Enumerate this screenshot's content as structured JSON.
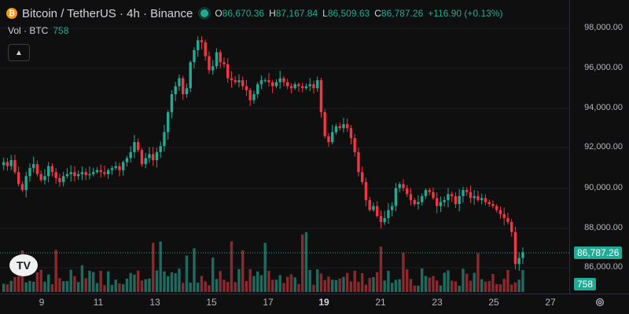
{
  "legend": {
    "symbol": "Bitcoin / TetherUS · 4h · Binance",
    "coin_icon": "bitcoin-icon",
    "ohlc": [
      {
        "k": "O",
        "v": "86,670.36"
      },
      {
        "k": "H",
        "v": "87,167.84"
      },
      {
        "k": "L",
        "v": "86,509.63"
      },
      {
        "k": "C",
        "v": "86,787.26"
      }
    ],
    "change": "+116.90 (+0.13%)"
  },
  "volume": {
    "label": "Vol · BTC",
    "value": "758"
  },
  "price_axis": [
    "98,000.00",
    "96,000.00",
    "94,000.00",
    "92,000.00",
    "90,000.00",
    "88,000.00",
    "86,000.00"
  ],
  "date_axis": [
    "9",
    "11",
    "13",
    "15",
    "17",
    "19",
    "21",
    "23",
    "25",
    "27"
  ],
  "date_axis_bold": "19",
  "last_price": "86,787.26",
  "last_volume": "758",
  "colors": {
    "up": "#22ab94",
    "down": "#f23645",
    "vol_up": "#1f6b60",
    "vol_down": "#8a2a2f"
  },
  "chart_data": {
    "type": "candlestick",
    "ylim": [
      85000,
      99000
    ],
    "closes": [
      91300,
      91100,
      91400,
      90800,
      90200,
      89900,
      90600,
      91000,
      91200,
      90700,
      90400,
      90600,
      91100,
      90800,
      90500,
      90300,
      90600,
      90700,
      90800,
      90600,
      90700,
      90800,
      90650,
      90700,
      90800,
      90900,
      90800,
      90700,
      90900,
      91000,
      91100,
      90900,
      91300,
      91500,
      91800,
      92300,
      91900,
      91200,
      91500,
      91700,
      91400,
      91800,
      92100,
      92800,
      93800,
      94700,
      95100,
      95500,
      94700,
      95000,
      96300,
      96900,
      97400,
      97300,
      96600,
      95900,
      96100,
      96800,
      96300,
      96200,
      95500,
      95400,
      95300,
      95400,
      95100,
      94900,
      94400,
      94700,
      95200,
      95400,
      95400,
      95300,
      95100,
      95300,
      95500,
      95300,
      95100,
      95000,
      95200,
      95100,
      95000,
      95100,
      95200,
      95000,
      95400,
      93800,
      92600,
      92300,
      92800,
      93100,
      93000,
      93200,
      93000,
      92500,
      91800,
      90800,
      90300,
      89400,
      88900,
      89100,
      88600,
      88300,
      88500,
      88900,
      89100,
      90000,
      90200,
      90000,
      89700,
      89400,
      89200,
      89300,
      89600,
      89900,
      89800,
      89500,
      89100,
      89300,
      89400,
      89700,
      89600,
      89200,
      89600,
      89900,
      89800,
      89500,
      89600,
      89400,
      89500,
      89300,
      89200,
      89100,
      88900,
      88700,
      88500,
      88300,
      87800,
      86200,
      86500,
      86787
    ]
  }
}
